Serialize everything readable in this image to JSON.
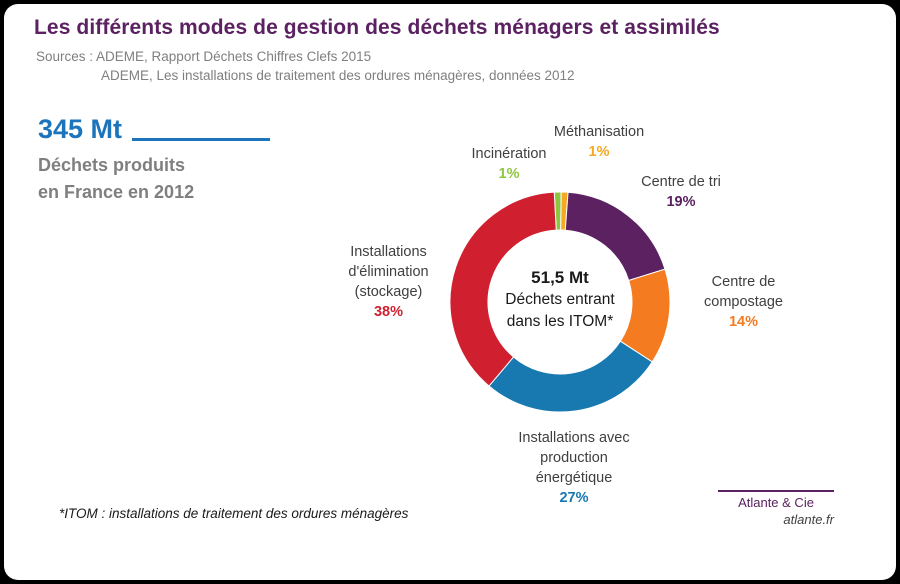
{
  "page": {
    "title": "Les différents modes de gestion des déchets ménagers et assimilés",
    "source_line1": "Sources : ADEME, Rapport Déchets Chiffres Clefs 2015",
    "source_line2": "ADEME, Les installations de traitement des ordures ménagères, données 2012",
    "footnote": "*ITOM : installations de traitement des ordures ménagères"
  },
  "stat": {
    "value": "345 Mt",
    "caption_line1": "Déchets produits",
    "caption_line2": "en France en 2012"
  },
  "donut_center": {
    "value": "51,5 Mt",
    "line1": "Déchets entrant",
    "line2": "dans les ITOM*"
  },
  "labels": {
    "incineration": {
      "name": "Incinération",
      "pct": "1%"
    },
    "methanisation": {
      "name": "Méthanisation",
      "pct": "1%"
    },
    "tri": {
      "name": "Centre de tri",
      "pct": "19%"
    },
    "compostage": {
      "line1": "Centre de",
      "line2": "compostage",
      "pct": "14%"
    },
    "energie": {
      "line1": "Installations avec",
      "line2": "production",
      "line3": "énergétique",
      "pct": "27%"
    },
    "stockage": {
      "line1": "Installations",
      "line2": "d'élimination",
      "line3": "(stockage)",
      "pct": "38%"
    }
  },
  "brand": {
    "name": "Atlante & Cie",
    "site": "atlante.fr"
  },
  "colors": {
    "title_purple": "#5B2161",
    "accent_blue": "#1C75BC",
    "gray_text": "#7F7F7F"
  },
  "chart_data": {
    "type": "pie",
    "donut": true,
    "title": "Les différents modes de gestion des déchets ménagers et assimilés",
    "center_value": "51,5 Mt",
    "center_label": "Déchets entrant dans les ITOM*",
    "start_angle_deg": -3,
    "direction": "clockwise",
    "legend_position": "around",
    "segments": [
      {
        "label": "Incinération",
        "pct": 1,
        "color": "#8DC63F"
      },
      {
        "label": "Méthanisation",
        "pct": 1,
        "color": "#F7A823"
      },
      {
        "label": "Centre de tri",
        "pct": 19,
        "color": "#5B2161"
      },
      {
        "label": "Centre de compostage",
        "pct": 14,
        "color": "#F47B20"
      },
      {
        "label": "Installations avec production énergétique",
        "pct": 27,
        "color": "#1879B0"
      },
      {
        "label": "Installations d'élimination (stockage)",
        "pct": 38,
        "color": "#D0202F"
      }
    ]
  }
}
